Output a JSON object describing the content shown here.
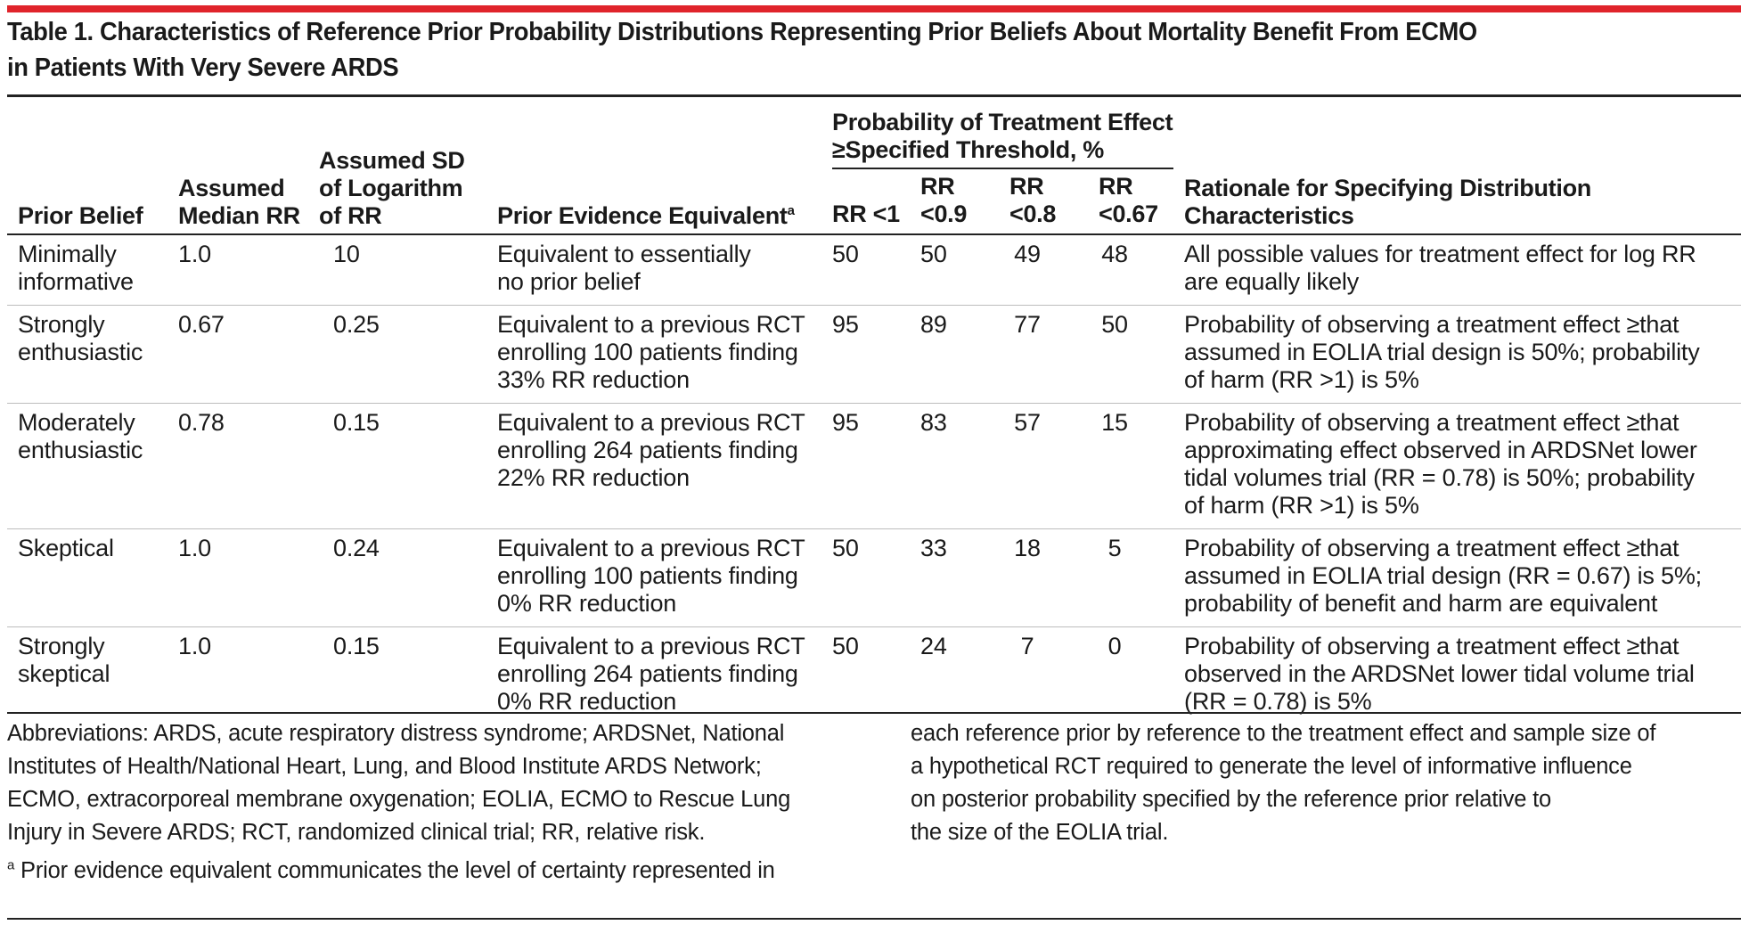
{
  "title": {
    "line1": "Table 1. Characteristics of Reference Prior Probability Distributions Representing Prior Beliefs About Mortality Benefit From ECMO",
    "line2": "in Patients With Very Severe ARDS"
  },
  "headers": {
    "prior_belief": "Prior Belief",
    "median_rr": [
      "Assumed",
      "Median RR"
    ],
    "sd_log_rr": [
      "Assumed SD",
      "of Logarithm",
      "of RR"
    ],
    "evidence": "Prior Evidence Equivalent",
    "evidence_sup": "a",
    "prob_group": [
      "Probability of Treatment Effect",
      "≥Specified Threshold, %"
    ],
    "rr1": "RR <1",
    "rr09": [
      "RR",
      "<0.9"
    ],
    "rr08": [
      "RR",
      "<0.8"
    ],
    "rr067": [
      "RR",
      "<0.67"
    ],
    "rationale": "Rationale for Specifying Distribution Characteristics"
  },
  "rows": [
    {
      "belief": [
        "Minimally",
        "informative"
      ],
      "median": "1.0",
      "sd": "10",
      "evidence": [
        "Equivalent to essentially",
        "no prior belief"
      ],
      "p1": "50",
      "p09": "50",
      "p08": "49",
      "p067": "48",
      "rationale": [
        "All possible values for treatment effect for log RR",
        "are equally likely"
      ]
    },
    {
      "belief": [
        "Strongly",
        "enthusiastic"
      ],
      "median": "0.67",
      "sd": "0.25",
      "evidence": [
        "Equivalent to a previous RCT",
        "enrolling 100 patients finding",
        "33% RR reduction"
      ],
      "p1": "95",
      "p09": "89",
      "p08": "77",
      "p067": "50",
      "rationale": [
        "Probability of observing a treatment effect ≥that",
        "assumed in EOLIA trial design is 50%; probability",
        "of harm (RR >1) is 5%"
      ]
    },
    {
      "belief": [
        "Moderately",
        "enthusiastic"
      ],
      "median": "0.78",
      "sd": "0.15",
      "evidence": [
        "Equivalent to a previous RCT",
        "enrolling 264 patients finding",
        "22% RR reduction"
      ],
      "p1": "95",
      "p09": "83",
      "p08": "57",
      "p067": "15",
      "rationale": [
        "Probability of observing a treatment effect ≥that",
        "approximating effect observed in ARDSNet lower",
        "tidal volumes trial (RR = 0.78) is 50%; probability",
        "of harm (RR >1) is 5%"
      ]
    },
    {
      "belief": [
        "Skeptical"
      ],
      "median": "1.0",
      "sd": "0.24",
      "evidence": [
        "Equivalent to a previous RCT",
        "enrolling 100 patients finding",
        "0% RR reduction"
      ],
      "p1": "50",
      "p09": "33",
      "p08": "18",
      "p067": "5",
      "rationale": [
        "Probability of observing a treatment effect ≥that",
        "assumed in EOLIA trial design (RR = 0.67) is 5%;",
        "probability of benefit and harm are equivalent"
      ]
    },
    {
      "belief": [
        "Strongly",
        "skeptical"
      ],
      "median": "1.0",
      "sd": "0.15",
      "evidence": [
        "Equivalent to a previous RCT",
        "enrolling 264 patients finding",
        "0% RR reduction"
      ],
      "p1": "50",
      "p09": "24",
      "p08": "7",
      "p067": "0",
      "rationale": [
        "Probability of observing a treatment effect ≥that",
        "observed in the ARDSNet lower tidal volume trial",
        "(RR = 0.78) is 5%"
      ]
    }
  ],
  "notes": {
    "abbreviations": [
      "Abbreviations: ARDS, acute respiratory distress syndrome; ARDSNet, National",
      "Institutes of Health/National Heart, Lung, and Blood Institute ARDS Network;",
      "ECMO, extracorporeal membrane oxygenation; EOLIA, ECMO to Rescue Lung",
      "Injury in Severe ARDS; RCT, randomized clinical trial; RR, relative risk."
    ],
    "footnote_mark": "a",
    "footnote_left": "Prior evidence equivalent communicates the level of certainty represented in",
    "footnote_right": [
      "each reference prior by reference to the treatment effect and sample size of",
      "a hypothetical RCT required to generate the level of informative influence",
      "on posterior probability specified by the reference prior relative to",
      "the size of the EOLIA trial."
    ]
  },
  "colors": {
    "accent_rule": "#e0242b",
    "text": "#1a1a1a"
  }
}
